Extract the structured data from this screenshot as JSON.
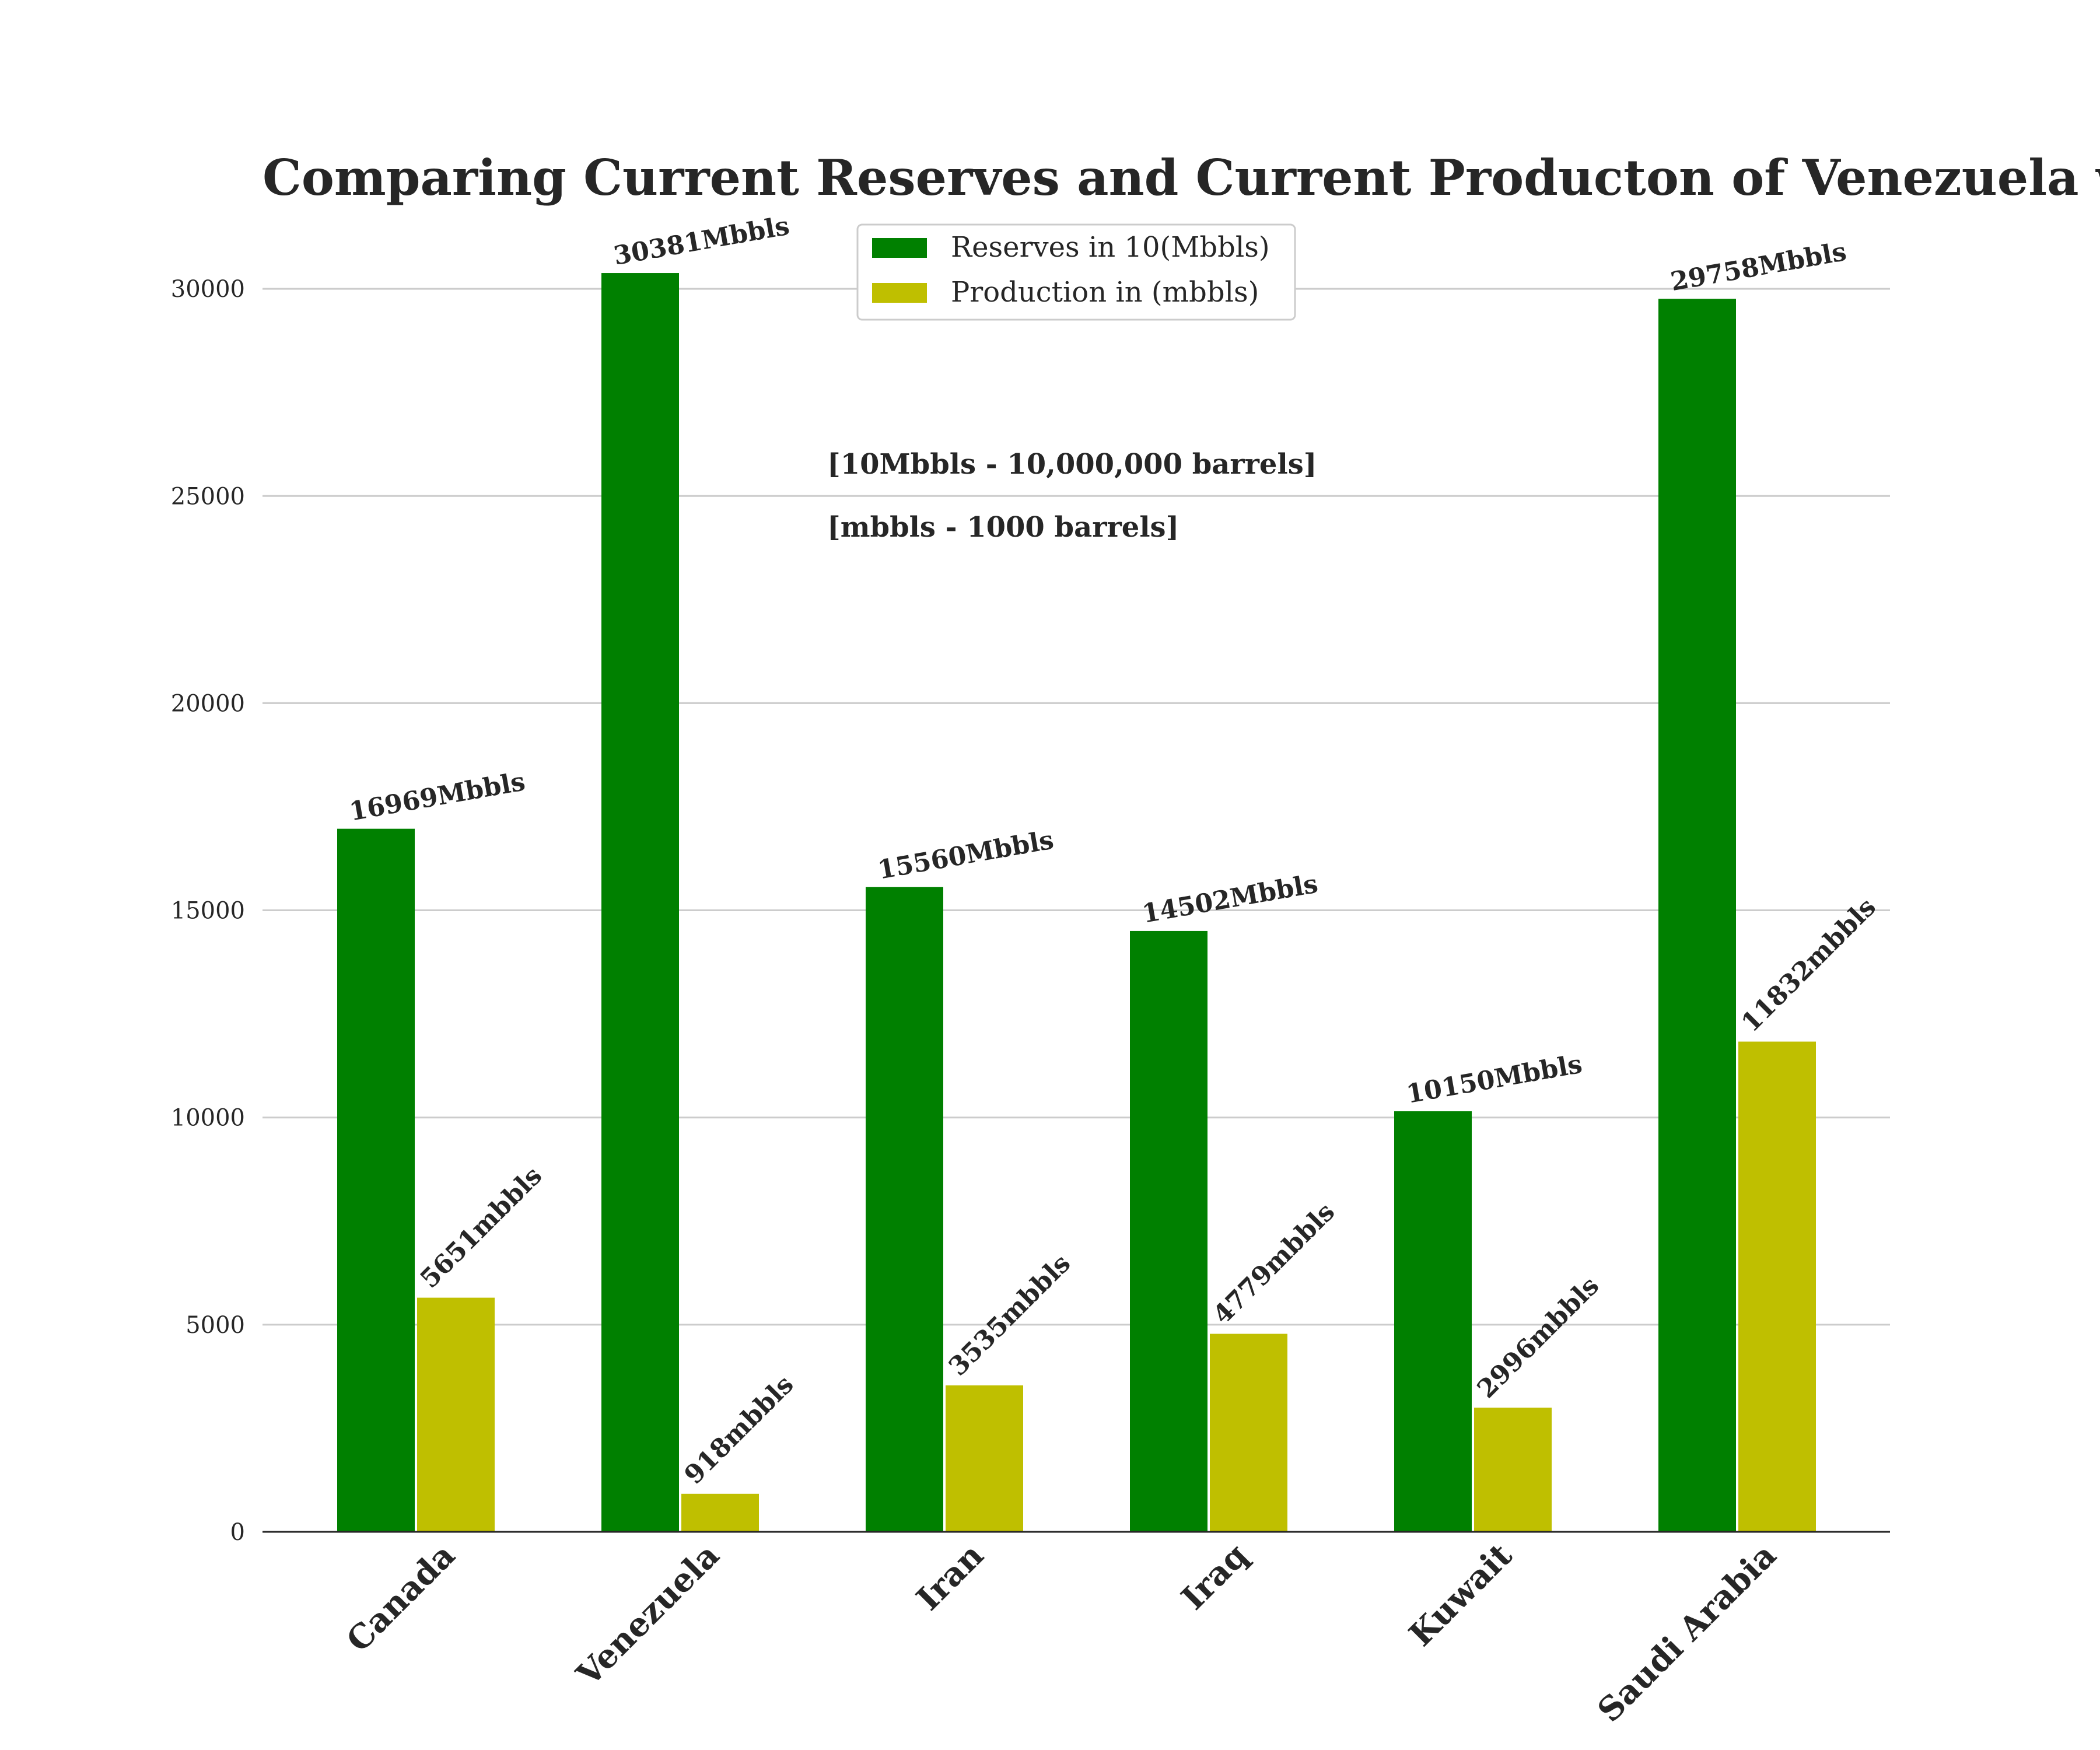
{
  "chart_data": {
    "type": "bar",
    "title": "Comparing Current Reserves and Current Producton of Venezuela w",
    "xlabel": "",
    "ylabel": "",
    "categories": [
      "Canada",
      "Venezuela",
      "Iran",
      "Iraq",
      "Kuwait",
      "Saudi Arabia"
    ],
    "series": [
      {
        "name": "Reserves in 10(Mbbls)",
        "color": "#008000",
        "values": [
          16969,
          30381,
          15560,
          14502,
          10150,
          29758
        ],
        "labels": [
          "16969Mbbls",
          "30381Mbbls",
          "15560Mbbls",
          "14502Mbbls",
          "10150Mbbls",
          "29758Mbbls"
        ]
      },
      {
        "name": "Production in (mbbls)",
        "color": "#bfbf00",
        "values": [
          5651,
          918,
          3535,
          4779,
          2996,
          11832
        ],
        "labels": [
          "5651mbbls",
          "918mbbls",
          "3535mbbls",
          "4779mbbls",
          "2996mbbls",
          "11832mbbls"
        ]
      }
    ],
    "ylim": [
      0,
      31900
    ],
    "yticks": [
      0,
      5000,
      10000,
      15000,
      20000,
      25000,
      30000
    ],
    "grid": "horizontal",
    "legend_position": "top-center",
    "annotations": [
      "[10Mbbls - 10,000,000 barrels]",
      "[mbbls - 1000 barrels]"
    ]
  }
}
